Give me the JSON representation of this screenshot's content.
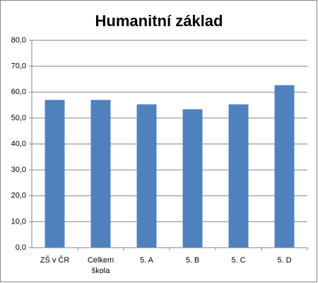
{
  "chart_data": {
    "type": "bar",
    "title": "Humanitní základ",
    "categories": [
      "ZŠ v ČR",
      "Celkem škola",
      "5. A",
      "5. B",
      "5. C",
      "5. D"
    ],
    "values": [
      57.0,
      57.0,
      55.3,
      53.4,
      55.3,
      62.7
    ],
    "color": "#4f81bd",
    "ylim": [
      0,
      80
    ],
    "yticks": [
      {
        "value": 0,
        "label": "0,0"
      },
      {
        "value": 10,
        "label": "10,0"
      },
      {
        "value": 20,
        "label": "20,0"
      },
      {
        "value": 30,
        "label": "30,0"
      },
      {
        "value": 40,
        "label": "40,0"
      },
      {
        "value": 50,
        "label": "50,0"
      },
      {
        "value": 60,
        "label": "60,0"
      },
      {
        "value": 70,
        "label": "70,0"
      },
      {
        "value": 80,
        "label": "80,0"
      }
    ],
    "grid": true
  }
}
